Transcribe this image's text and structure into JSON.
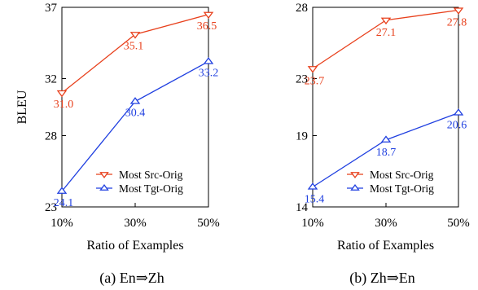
{
  "chart_data": [
    {
      "type": "line",
      "caption": "(a) En⇒Zh",
      "xlabel": "Ratio of Examples",
      "ylabel": "BLEU",
      "categories": [
        "10%",
        "30%",
        "50%"
      ],
      "ylim": [
        23,
        37
      ],
      "yticks": [
        "23",
        "28",
        "32",
        "37"
      ],
      "grid": false,
      "legend_position": "bottom-right",
      "series": [
        {
          "name": "Most Src-Orig",
          "values": [
            31.0,
            35.1,
            36.5
          ],
          "labels": [
            "31.0",
            "35.1",
            "36.5"
          ],
          "color": "#e8401c",
          "marker": "triangle-down"
        },
        {
          "name": "Most Tgt-Orig",
          "values": [
            24.1,
            30.4,
            33.2
          ],
          "labels": [
            "24.1",
            "30.4",
            "33.2"
          ],
          "color": "#1f3fe0",
          "marker": "triangle-up"
        }
      ]
    },
    {
      "type": "line",
      "caption": "(b) Zh⇒En",
      "xlabel": "Ratio of Examples",
      "ylabel": "",
      "categories": [
        "10%",
        "30%",
        "50%"
      ],
      "ylim": [
        14,
        28
      ],
      "yticks": [
        "14",
        "19",
        "23",
        "28"
      ],
      "grid": false,
      "legend_position": "bottom-right",
      "series": [
        {
          "name": "Most Src-Orig",
          "values": [
            23.7,
            27.1,
            27.8
          ],
          "labels": [
            "23.7",
            "27.1",
            "27.8"
          ],
          "color": "#e8401c",
          "marker": "triangle-down"
        },
        {
          "name": "Most Tgt-Orig",
          "values": [
            15.4,
            18.7,
            20.6
          ],
          "labels": [
            "15.4",
            "18.7",
            "20.6"
          ],
          "color": "#1f3fe0",
          "marker": "triangle-up"
        }
      ]
    }
  ]
}
